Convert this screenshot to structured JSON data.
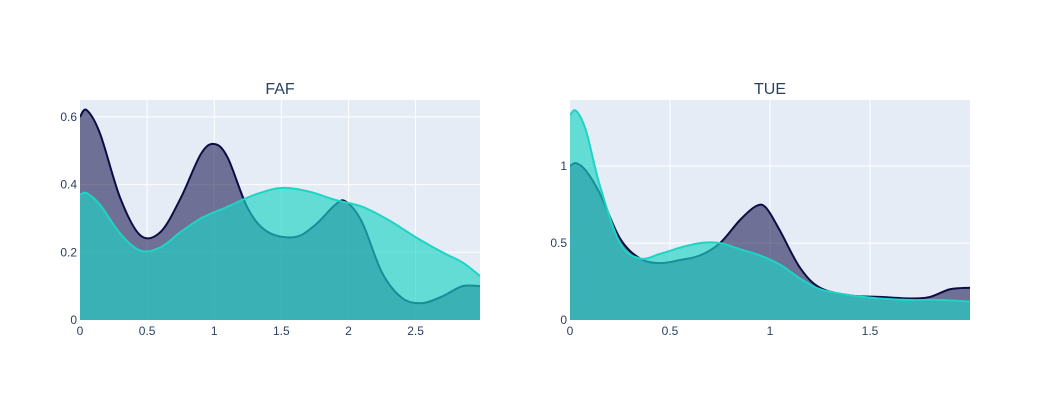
{
  "chart_data": [
    {
      "type": "area",
      "title": "FAF",
      "xlabel": "",
      "ylabel": "",
      "xlim": [
        0,
        2.98
      ],
      "ylim": [
        0,
        0.65
      ],
      "x_ticks": [
        0,
        0.5,
        1,
        1.5,
        2,
        2.5
      ],
      "x_tick_labels": [
        "0",
        "0.5",
        "1",
        "1.5",
        "2",
        "2.5"
      ],
      "y_ticks": [
        0,
        0.2,
        0.4,
        0.6
      ],
      "y_tick_labels": [
        "0",
        "0.2",
        "0.4",
        "0.6"
      ],
      "grid": true,
      "series": [
        {
          "color": "#0d0d45",
          "fill": "rgba(13,13,69,0.55)",
          "x": [
            0,
            0.05,
            0.15,
            0.3,
            0.45,
            0.6,
            0.75,
            0.9,
            1.0,
            1.1,
            1.25,
            1.4,
            1.6,
            1.75,
            1.9,
            1.98,
            2.1,
            2.25,
            2.4,
            2.55,
            2.7,
            2.85,
            2.98
          ],
          "y": [
            0.6,
            0.62,
            0.55,
            0.36,
            0.25,
            0.26,
            0.36,
            0.49,
            0.52,
            0.48,
            0.33,
            0.26,
            0.245,
            0.28,
            0.34,
            0.35,
            0.29,
            0.14,
            0.065,
            0.05,
            0.07,
            0.1,
            0.1
          ]
        },
        {
          "color": "#1ed4c4",
          "fill": "rgba(30,212,196,0.65)",
          "x": [
            0,
            0.05,
            0.15,
            0.3,
            0.45,
            0.6,
            0.75,
            0.9,
            1.1,
            1.3,
            1.5,
            1.7,
            1.9,
            2.1,
            2.3,
            2.5,
            2.7,
            2.85,
            2.98
          ],
          "y": [
            0.37,
            0.375,
            0.34,
            0.255,
            0.205,
            0.215,
            0.26,
            0.3,
            0.335,
            0.37,
            0.39,
            0.38,
            0.355,
            0.335,
            0.295,
            0.245,
            0.2,
            0.17,
            0.13
          ]
        }
      ]
    },
    {
      "type": "area",
      "title": "TUE",
      "xlabel": "",
      "ylabel": "",
      "xlim": [
        0,
        2
      ],
      "ylim": [
        0,
        1.43
      ],
      "x_ticks": [
        0,
        0.5,
        1,
        1.5
      ],
      "x_tick_labels": [
        "0",
        "0.5",
        "1",
        "1.5"
      ],
      "y_ticks": [
        0,
        0.5,
        1
      ],
      "y_tick_labels": [
        "0",
        "0.5",
        "1"
      ],
      "grid": true,
      "series": [
        {
          "color": "#0d0d45",
          "fill": "rgba(13,13,69,0.55)",
          "x": [
            0,
            0.03,
            0.08,
            0.15,
            0.25,
            0.35,
            0.45,
            0.55,
            0.65,
            0.75,
            0.85,
            0.93,
            0.98,
            1.05,
            1.15,
            1.25,
            1.4,
            1.55,
            1.7,
            1.8,
            1.9,
            2.0
          ],
          "y": [
            1.0,
            1.02,
            0.97,
            0.82,
            0.53,
            0.4,
            0.37,
            0.39,
            0.42,
            0.5,
            0.65,
            0.74,
            0.73,
            0.58,
            0.34,
            0.21,
            0.16,
            0.15,
            0.14,
            0.15,
            0.2,
            0.21
          ]
        },
        {
          "color": "#1ed4c4",
          "fill": "rgba(30,212,196,0.65)",
          "x": [
            0,
            0.03,
            0.08,
            0.15,
            0.25,
            0.35,
            0.45,
            0.55,
            0.65,
            0.75,
            0.85,
            0.95,
            1.05,
            1.15,
            1.25,
            1.4,
            1.55,
            1.7,
            1.85,
            2.0
          ],
          "y": [
            1.33,
            1.36,
            1.23,
            0.87,
            0.5,
            0.4,
            0.43,
            0.47,
            0.5,
            0.5,
            0.46,
            0.42,
            0.36,
            0.27,
            0.2,
            0.16,
            0.14,
            0.13,
            0.13,
            0.12
          ]
        }
      ]
    }
  ]
}
